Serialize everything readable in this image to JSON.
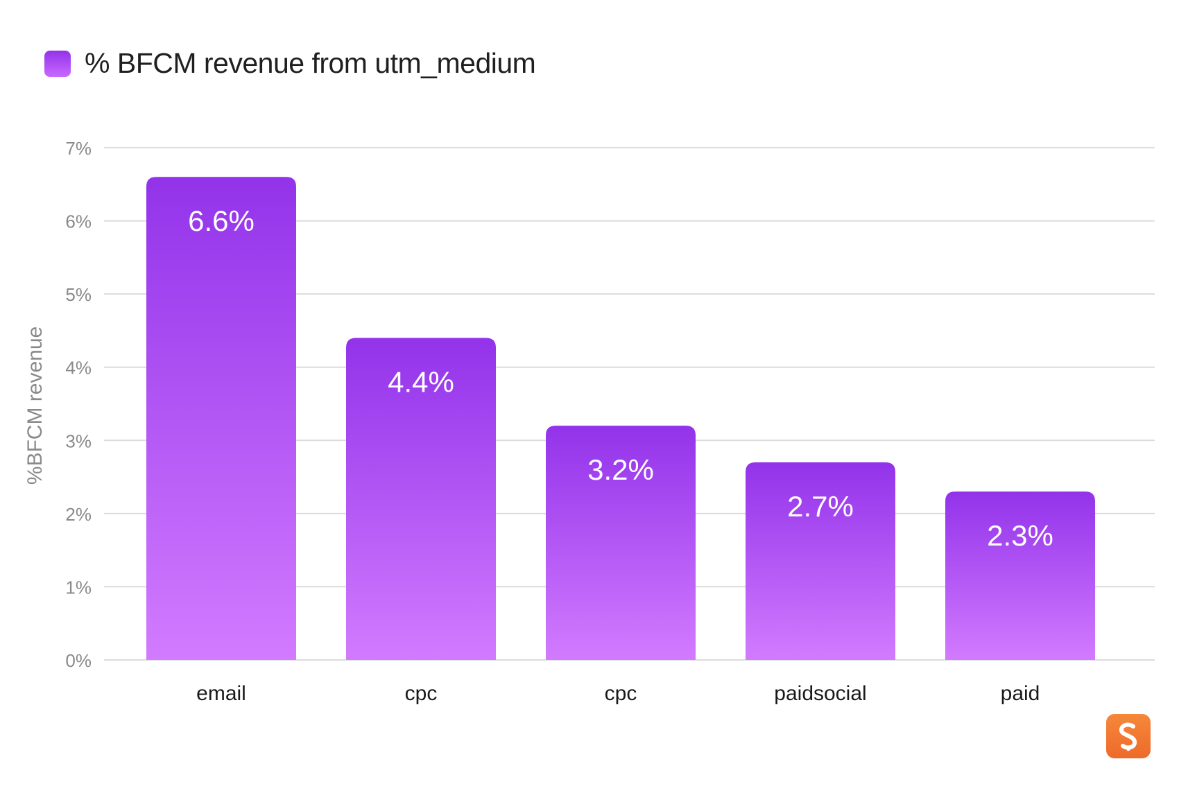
{
  "legend": {
    "label": "% BFCM revenue from utm_medium",
    "color": "#9333ea"
  },
  "chart_data": {
    "type": "bar",
    "title": "",
    "xlabel": "",
    "ylabel": "%BFCM revenue",
    "categories": [
      "email",
      "cpc",
      "cpc",
      "paidsocial",
      "paid"
    ],
    "values": [
      6.6,
      4.4,
      3.2,
      2.7,
      2.3
    ],
    "value_labels": [
      "6.6%",
      "4.4%",
      "3.2%",
      "2.7%",
      "2.3%"
    ],
    "ylim": [
      0,
      7
    ],
    "yticks": [
      0,
      1,
      2,
      3,
      4,
      5,
      6,
      7
    ],
    "ytick_labels": [
      "0%",
      "1%",
      "2%",
      "3%",
      "4%",
      "5%",
      "6%",
      "7%"
    ],
    "grid": true,
    "bar_color_top": "#9333ea",
    "bar_color_bottom": "#d27bff"
  },
  "logo": {
    "icon": "brand-logo-icon",
    "color": "#f07a30"
  }
}
